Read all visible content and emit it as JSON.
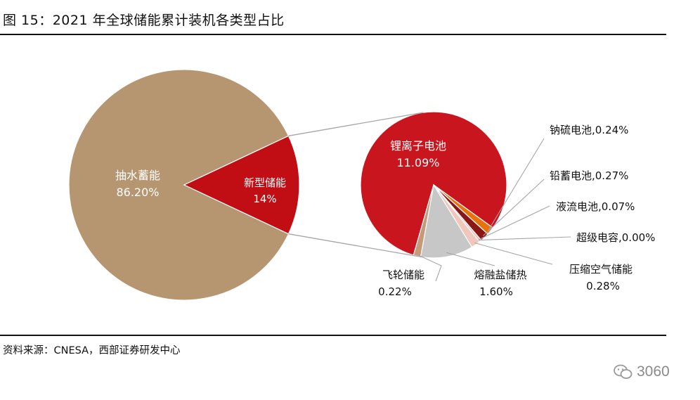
{
  "header": {
    "title": "图 15：2021 年全球储能累计装机各类型占比"
  },
  "footer": {
    "source": "资料来源：CNESA，西部证券研发中心",
    "watermark": "3060"
  },
  "colors": {
    "pumped_hydro": "#B69670",
    "new_storage": "#C00E14",
    "lithium": "#C8151E",
    "sodium_sulfur": "#E8730C",
    "lead": "#8B1616",
    "flow": "#F2B8AE",
    "supercap": "#DE4A3C",
    "compressed_air": "#F0C7BC",
    "molten_salt": "#C7C7C7",
    "flywheel": "#C49A7A",
    "connector": "#A6A6A6"
  },
  "chart_data": [
    {
      "type": "pie",
      "title": "",
      "slices": [
        {
          "label": "抽水蓄能",
          "value": 86.2,
          "value_label": "86.20%",
          "color_key": "pumped_hydro"
        },
        {
          "label": "新型储能",
          "value": 14,
          "value_label": "14%",
          "color_key": "new_storage"
        }
      ]
    },
    {
      "type": "pie",
      "title": "",
      "parent_slice": "新型储能",
      "slices": [
        {
          "label": "锂离子电池",
          "value": 11.09,
          "value_label": "11.09%",
          "color_key": "lithium"
        },
        {
          "label": "钠硫电池",
          "value": 0.24,
          "value_label": "0.24%",
          "color_key": "sodium_sulfur"
        },
        {
          "label": "铅蓄电池",
          "value": 0.27,
          "value_label": "0.27%",
          "color_key": "lead"
        },
        {
          "label": "液流电池",
          "value": 0.07,
          "value_label": "0.07%",
          "color_key": "flow"
        },
        {
          "label": "超级电容",
          "value": 0.0,
          "value_label": "0.00%",
          "color_key": "supercap"
        },
        {
          "label": "压缩空气储能",
          "value": 0.28,
          "value_label": "0.28%",
          "color_key": "compressed_air"
        },
        {
          "label": "熔融盐储热",
          "value": 1.6,
          "value_label": "1.60%",
          "color_key": "molten_salt"
        },
        {
          "label": "飞轮储能",
          "value": 0.22,
          "value_label": "0.22%",
          "color_key": "flywheel"
        }
      ]
    }
  ]
}
